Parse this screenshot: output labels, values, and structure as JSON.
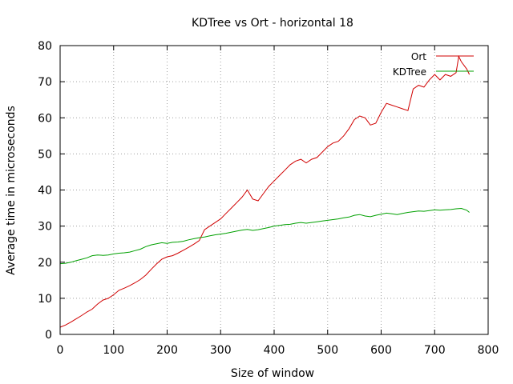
{
  "chart_data": {
    "type": "line",
    "title": "KDTree vs Ort - horizontal 18",
    "xlabel": "Size of window",
    "ylabel": "Average time in microseconds",
    "xlim": [
      0,
      800
    ],
    "ylim": [
      0,
      80
    ],
    "xticks": [
      0,
      100,
      200,
      300,
      400,
      500,
      600,
      700,
      800
    ],
    "yticks": [
      0,
      10,
      20,
      30,
      40,
      50,
      60,
      70,
      80
    ],
    "grid": true,
    "legend_position": "top-right",
    "series": [
      {
        "name": "Ort",
        "color": "#d00000",
        "points": [
          [
            0,
            2
          ],
          [
            10,
            2.6
          ],
          [
            20,
            3.4
          ],
          [
            30,
            4.3
          ],
          [
            40,
            5.2
          ],
          [
            50,
            6.2
          ],
          [
            60,
            7.0
          ],
          [
            70,
            8.4
          ],
          [
            80,
            9.5
          ],
          [
            90,
            10.0
          ],
          [
            100,
            11.0
          ],
          [
            110,
            12.2
          ],
          [
            120,
            12.8
          ],
          [
            130,
            13.5
          ],
          [
            140,
            14.3
          ],
          [
            150,
            15.2
          ],
          [
            160,
            16.4
          ],
          [
            170,
            18.0
          ],
          [
            180,
            19.5
          ],
          [
            190,
            20.8
          ],
          [
            200,
            21.5
          ],
          [
            210,
            21.8
          ],
          [
            220,
            22.5
          ],
          [
            230,
            23.3
          ],
          [
            240,
            24.1
          ],
          [
            250,
            25.0
          ],
          [
            260,
            26.0
          ],
          [
            270,
            29.0
          ],
          [
            280,
            30.0
          ],
          [
            290,
            31.0
          ],
          [
            300,
            32.0
          ],
          [
            310,
            33.5
          ],
          [
            320,
            35.0
          ],
          [
            330,
            36.5
          ],
          [
            340,
            38.0
          ],
          [
            350,
            40.0
          ],
          [
            360,
            37.5
          ],
          [
            370,
            37.0
          ],
          [
            380,
            39.0
          ],
          [
            390,
            41.0
          ],
          [
            400,
            42.5
          ],
          [
            410,
            44.0
          ],
          [
            420,
            45.5
          ],
          [
            430,
            47.0
          ],
          [
            440,
            48.0
          ],
          [
            450,
            48.5
          ],
          [
            460,
            47.5
          ],
          [
            470,
            48.5
          ],
          [
            480,
            49.0
          ],
          [
            490,
            50.5
          ],
          [
            500,
            52.0
          ],
          [
            510,
            53.0
          ],
          [
            520,
            53.5
          ],
          [
            530,
            55.0
          ],
          [
            540,
            57.0
          ],
          [
            550,
            59.5
          ],
          [
            560,
            60.5
          ],
          [
            570,
            60.0
          ],
          [
            580,
            58.0
          ],
          [
            590,
            58.5
          ],
          [
            600,
            61.5
          ],
          [
            610,
            64.0
          ],
          [
            620,
            63.5
          ],
          [
            630,
            63.0
          ],
          [
            640,
            62.5
          ],
          [
            650,
            62.0
          ],
          [
            660,
            68.0
          ],
          [
            670,
            69.0
          ],
          [
            680,
            68.5
          ],
          [
            690,
            70.5
          ],
          [
            700,
            72.0
          ],
          [
            710,
            70.5
          ],
          [
            720,
            72.0
          ],
          [
            730,
            71.5
          ],
          [
            740,
            72.5
          ],
          [
            745,
            77.0
          ],
          [
            750,
            75.5
          ],
          [
            760,
            73.5
          ],
          [
            765,
            72.0
          ]
        ]
      },
      {
        "name": "KDTree",
        "color": "#00a000",
        "points": [
          [
            0,
            19.6
          ],
          [
            10,
            19.7
          ],
          [
            20,
            20.0
          ],
          [
            30,
            20.4
          ],
          [
            40,
            20.8
          ],
          [
            50,
            21.2
          ],
          [
            60,
            21.8
          ],
          [
            70,
            22.0
          ],
          [
            80,
            21.9
          ],
          [
            90,
            22.0
          ],
          [
            100,
            22.3
          ],
          [
            110,
            22.5
          ],
          [
            120,
            22.6
          ],
          [
            130,
            22.8
          ],
          [
            140,
            23.2
          ],
          [
            150,
            23.6
          ],
          [
            160,
            24.3
          ],
          [
            170,
            24.8
          ],
          [
            180,
            25.1
          ],
          [
            190,
            25.4
          ],
          [
            200,
            25.2
          ],
          [
            210,
            25.5
          ],
          [
            220,
            25.6
          ],
          [
            230,
            25.8
          ],
          [
            240,
            26.2
          ],
          [
            250,
            26.5
          ],
          [
            260,
            26.8
          ],
          [
            270,
            27.0
          ],
          [
            280,
            27.3
          ],
          [
            290,
            27.6
          ],
          [
            300,
            27.8
          ],
          [
            310,
            28.0
          ],
          [
            320,
            28.3
          ],
          [
            330,
            28.6
          ],
          [
            340,
            28.9
          ],
          [
            350,
            29.1
          ],
          [
            360,
            28.8
          ],
          [
            370,
            29.0
          ],
          [
            380,
            29.3
          ],
          [
            390,
            29.6
          ],
          [
            400,
            30.0
          ],
          [
            410,
            30.2
          ],
          [
            420,
            30.4
          ],
          [
            430,
            30.5
          ],
          [
            440,
            30.8
          ],
          [
            450,
            31.0
          ],
          [
            460,
            30.8
          ],
          [
            470,
            31.0
          ],
          [
            480,
            31.2
          ],
          [
            490,
            31.4
          ],
          [
            500,
            31.6
          ],
          [
            510,
            31.8
          ],
          [
            520,
            32.0
          ],
          [
            530,
            32.3
          ],
          [
            540,
            32.5
          ],
          [
            550,
            33.0
          ],
          [
            560,
            33.2
          ],
          [
            570,
            32.8
          ],
          [
            580,
            32.6
          ],
          [
            590,
            33.0
          ],
          [
            600,
            33.3
          ],
          [
            610,
            33.6
          ],
          [
            620,
            33.4
          ],
          [
            630,
            33.2
          ],
          [
            640,
            33.5
          ],
          [
            650,
            33.8
          ],
          [
            660,
            34.0
          ],
          [
            670,
            34.2
          ],
          [
            680,
            34.1
          ],
          [
            690,
            34.3
          ],
          [
            700,
            34.5
          ],
          [
            710,
            34.4
          ],
          [
            720,
            34.5
          ],
          [
            730,
            34.6
          ],
          [
            740,
            34.8
          ],
          [
            750,
            34.9
          ],
          [
            760,
            34.4
          ],
          [
            765,
            33.8
          ]
        ]
      }
    ]
  }
}
